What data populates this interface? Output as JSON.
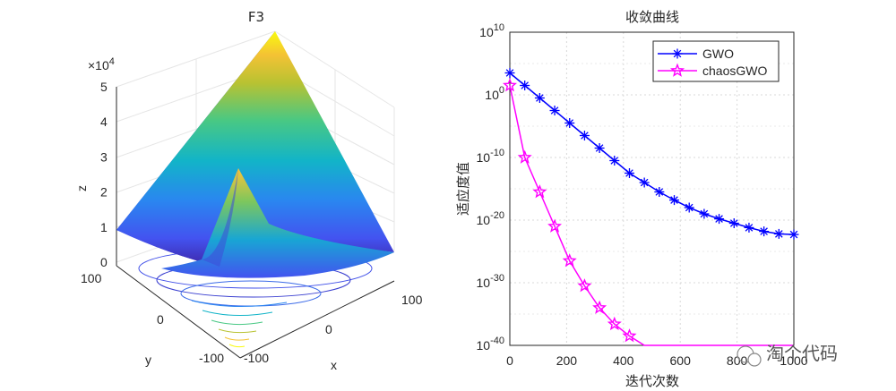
{
  "watermark": "淘个代码",
  "chart_data": [
    {
      "type": "surface",
      "title": "F3",
      "xlabel": "x",
      "ylabel": "y",
      "zlabel": "z",
      "z_exponent_label": "×10",
      "z_exponent": "4",
      "xlim": [
        -100,
        100
      ],
      "ylim": [
        -100,
        100
      ],
      "zlim": [
        0,
        50000
      ],
      "x_ticks": [
        "-100",
        "0",
        "100"
      ],
      "y_ticks": [
        "-100",
        "0",
        "100"
      ],
      "z_ticks": [
        "0",
        "1",
        "2",
        "3",
        "4",
        "5"
      ],
      "z_max": 50000,
      "colormap": "parula",
      "contours_below": true
    },
    {
      "type": "line",
      "title": "收敛曲线",
      "xlabel": "迭代次数",
      "ylabel": "适应度值",
      "xlim": [
        0,
        1000
      ],
      "ylim": [
        1e-40,
        10000000000.0
      ],
      "yscale": "log",
      "x_ticks": [
        "0",
        "200",
        "400",
        "600",
        "800",
        "1000"
      ],
      "y_tick_base": "10",
      "y_tick_exponents": [
        "10",
        "0",
        "-10",
        "-20",
        "-30",
        "-40"
      ],
      "grid": true,
      "legend_position": "top-right",
      "x": [
        0,
        52.6,
        105.3,
        157.9,
        210.5,
        263.2,
        315.8,
        368.4,
        421.1,
        473.7,
        526.3,
        578.9,
        631.6,
        684.2,
        736.8,
        789.5,
        842.1,
        894.7,
        947.4,
        1000
      ],
      "series": [
        {
          "name": "GWO",
          "color": "#0000ff",
          "marker": "asterisk",
          "log10_values": [
            3.5,
            1.5,
            -0.5,
            -2.5,
            -4.5,
            -6.5,
            -8.5,
            -10.5,
            -12.5,
            -14.0,
            -15.5,
            -16.8,
            -18.0,
            -19.0,
            -19.8,
            -20.5,
            -21.2,
            -21.8,
            -22.2,
            -22.3
          ]
        },
        {
          "name": "chaosGWO",
          "color": "#ff00ff",
          "marker": "pentagram",
          "log10_values": [
            1.5,
            -10.0,
            -15.5,
            -21.0,
            -26.5,
            -30.5,
            -34.0,
            -36.6,
            -38.5,
            -40.1,
            -41.6,
            -42.8,
            -44.0,
            -44.9,
            -45.7,
            -46.3,
            -46.8,
            -47.2,
            -47.5,
            -47.6
          ]
        }
      ]
    }
  ]
}
